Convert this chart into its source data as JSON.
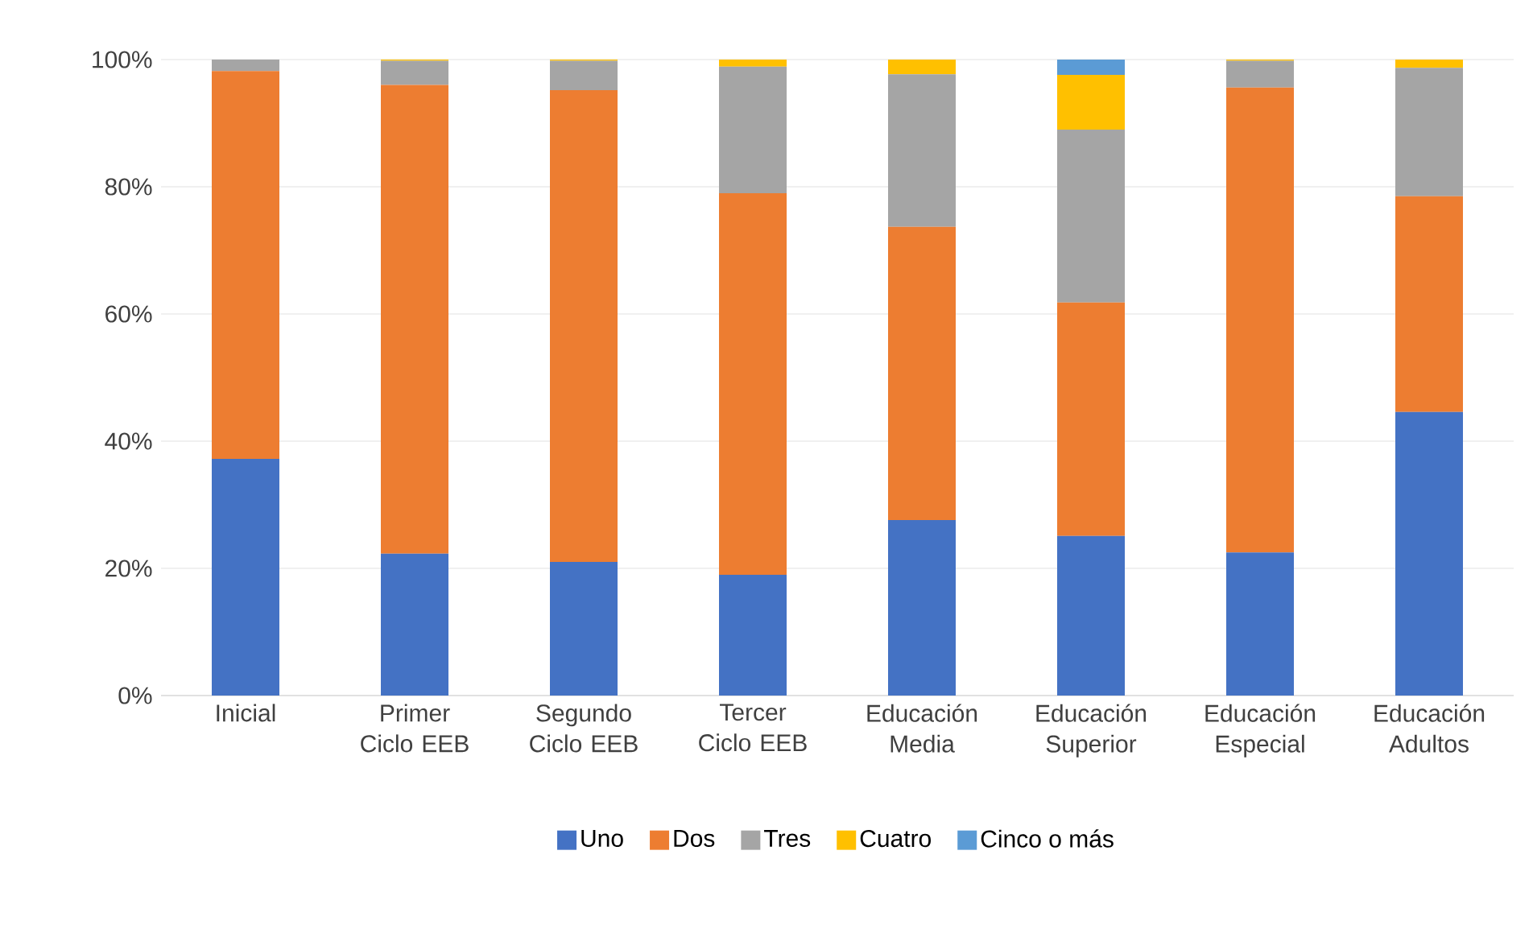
{
  "chart_data": {
    "type": "bar",
    "stacked": true,
    "categories": [
      "Inicial",
      "Primer Ciclo EEB",
      "Segundo Ciclo EEB",
      "Tercer Ciclo EEB",
      "Educación Media",
      "Educación Superior",
      "Educación Especial",
      "Educación Adultos"
    ],
    "series": [
      {
        "name": "Uno",
        "color": "#4472c4",
        "values": [
          37.2,
          22.3,
          21.0,
          19.0,
          27.6,
          25.1,
          22.5,
          44.6
        ]
      },
      {
        "name": "Dos",
        "color": "#ed7d31",
        "values": [
          61.0,
          73.7,
          74.2,
          60.0,
          46.1,
          36.7,
          73.1,
          33.9
        ]
      },
      {
        "name": "Tres",
        "color": "#a5a5a5",
        "values": [
          1.8,
          3.8,
          4.6,
          19.9,
          24.0,
          27.2,
          4.2,
          20.2
        ]
      },
      {
        "name": "Cuatro",
        "color": "#ffc000",
        "values": [
          null,
          0.2,
          0.2,
          1.1,
          2.3,
          8.6,
          0.2,
          1.3
        ]
      },
      {
        "name": "Cinco o más",
        "color": "#5b9bd5",
        "values": [
          null,
          null,
          null,
          null,
          null,
          2.4,
          null,
          null
        ]
      }
    ],
    "ylim": [
      0,
      100
    ],
    "yticks": [
      {
        "value": 0,
        "label": "0%"
      },
      {
        "value": 20,
        "label": "20%"
      },
      {
        "value": 40,
        "label": "40%"
      },
      {
        "value": 60,
        "label": "60%"
      },
      {
        "value": 80,
        "label": "80%"
      },
      {
        "value": 100,
        "label": "100%"
      }
    ],
    "grid": "y",
    "legend": "bottom"
  }
}
